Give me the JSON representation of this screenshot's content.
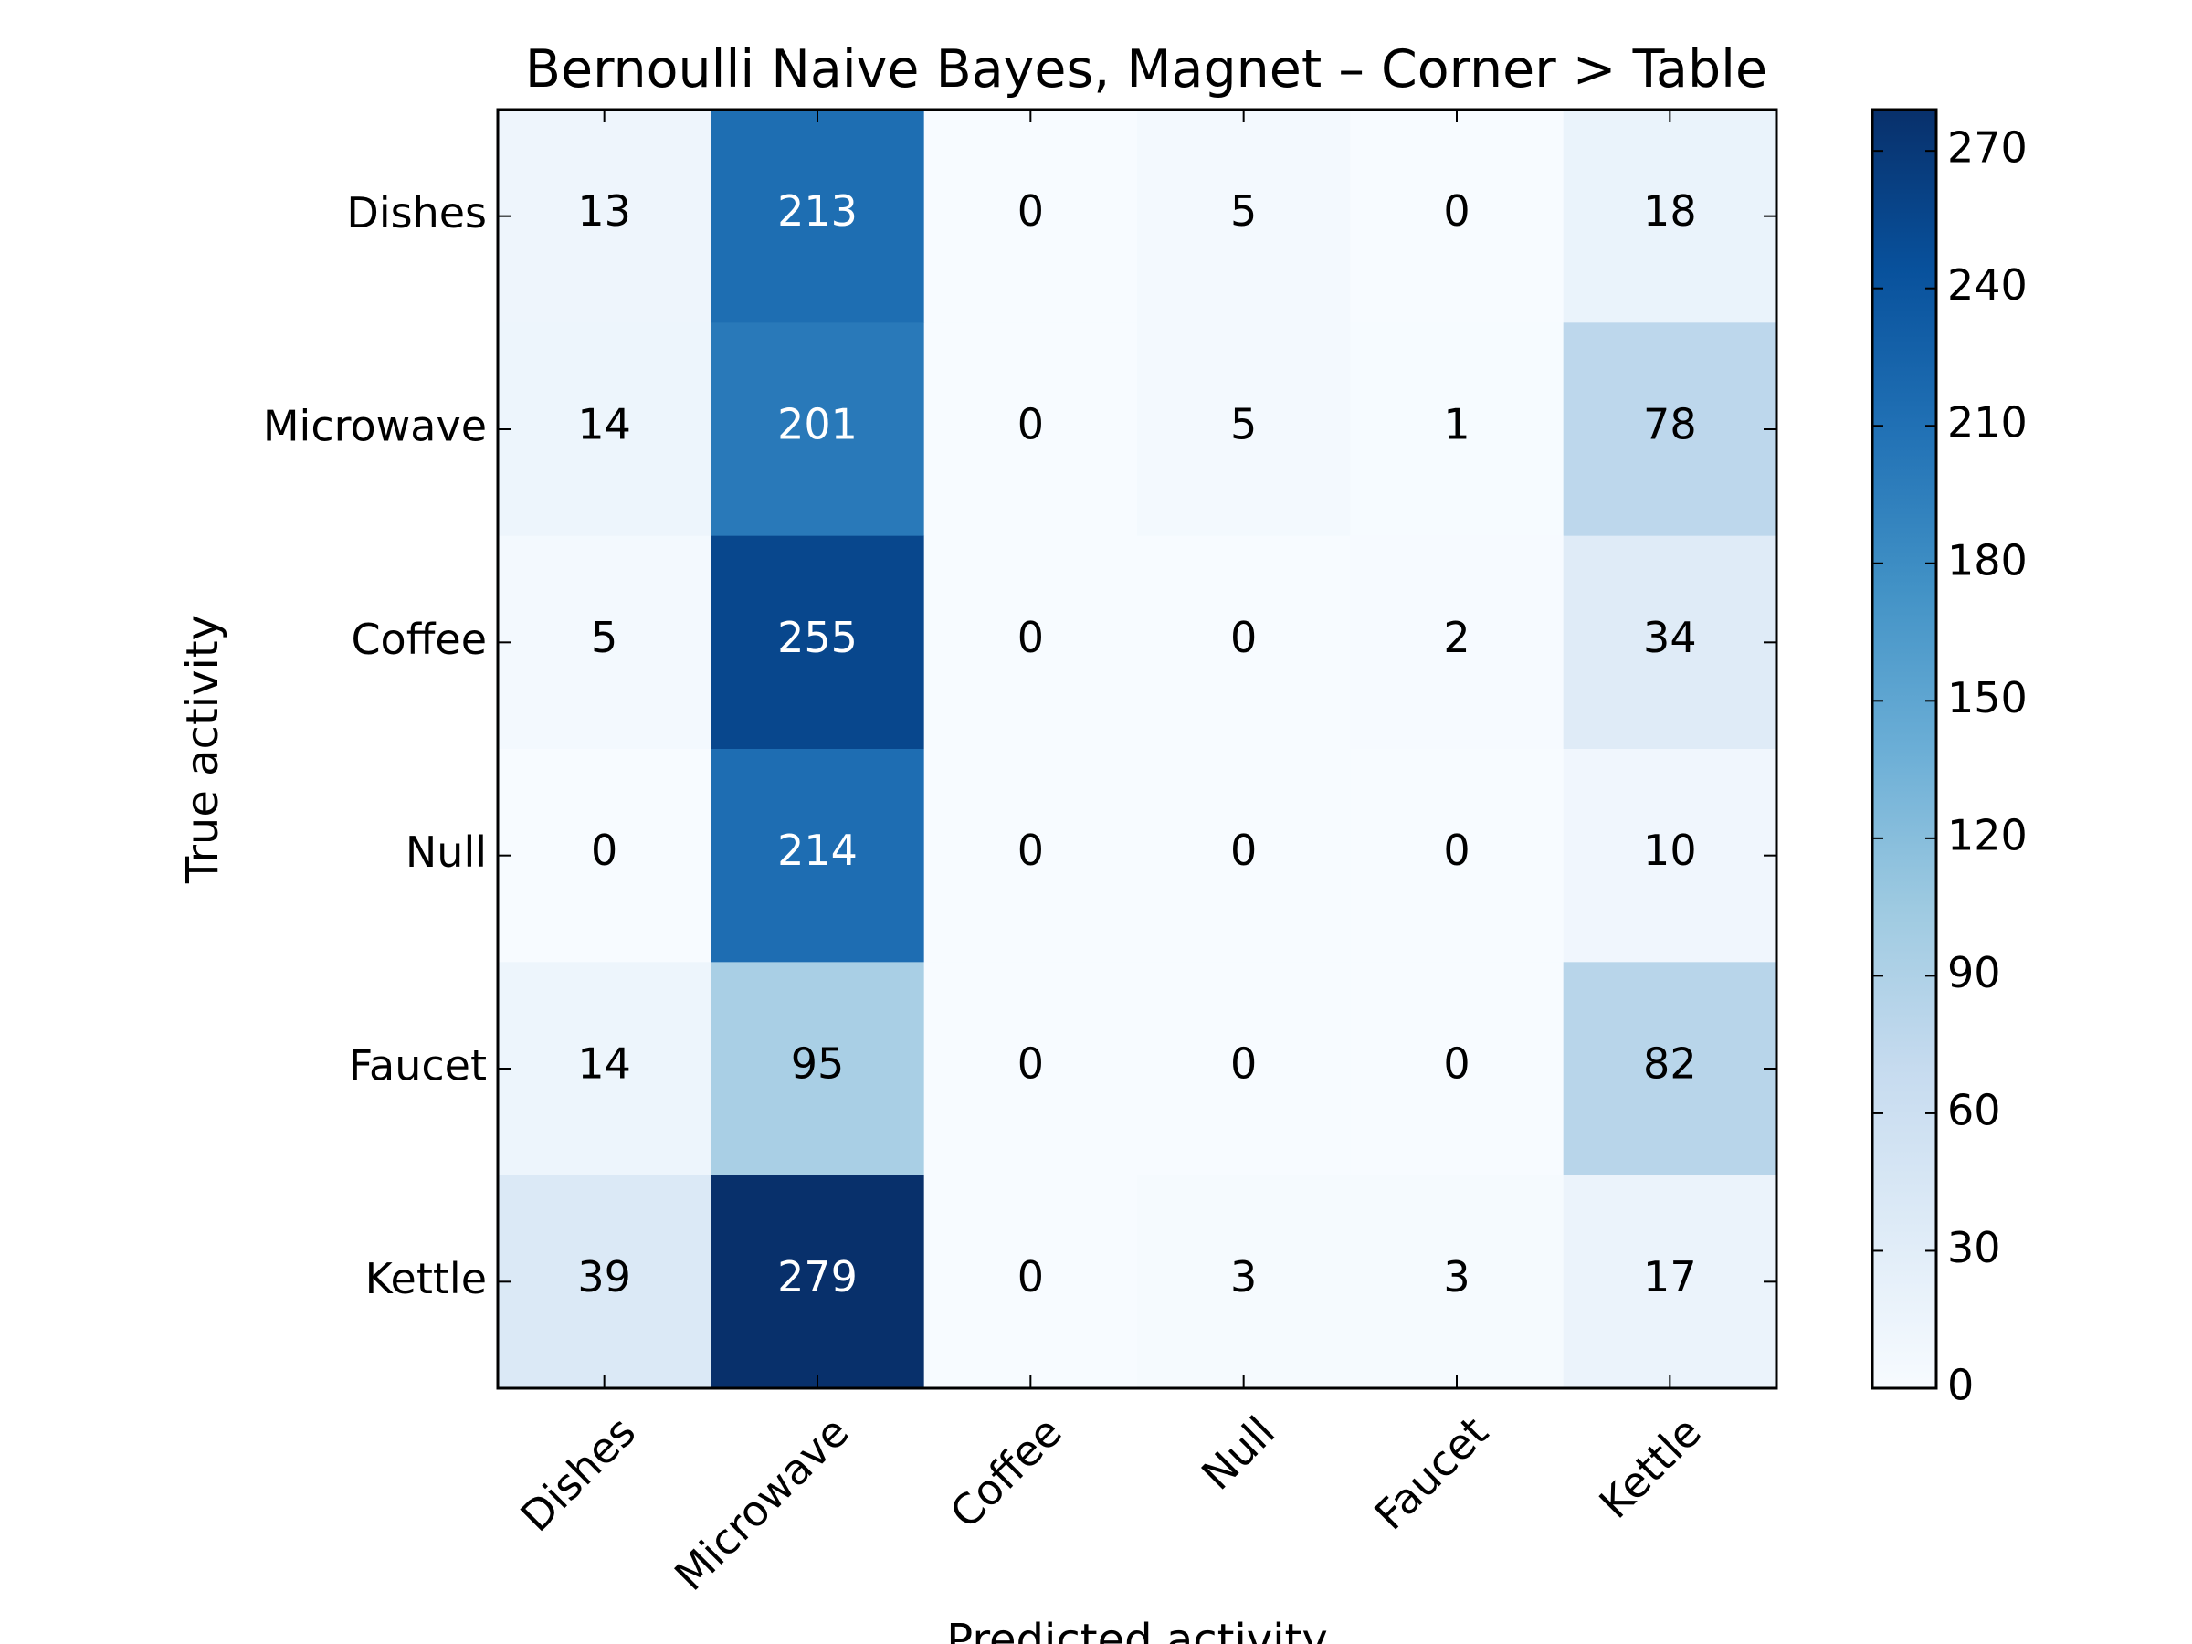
{
  "chart_data": {
    "type": "heatmap",
    "title": "Bernoulli Naive Bayes, Magnet – Corner > Table",
    "xlabel": "Predicted activity",
    "ylabel": "True activity",
    "x_categories": [
      "Dishes",
      "Microwave",
      "Coffee",
      "Null",
      "Faucet",
      "Kettle"
    ],
    "y_categories": [
      "Dishes",
      "Microwave",
      "Coffee",
      "Null",
      "Faucet",
      "Kettle"
    ],
    "values": [
      [
        13,
        213,
        0,
        5,
        0,
        18
      ],
      [
        14,
        201,
        0,
        5,
        1,
        78
      ],
      [
        5,
        255,
        0,
        0,
        2,
        34
      ],
      [
        0,
        214,
        0,
        0,
        0,
        10
      ],
      [
        14,
        95,
        0,
        0,
        0,
        82
      ],
      [
        39,
        279,
        0,
        3,
        3,
        17
      ]
    ],
    "colormap": "Blues",
    "value_range": [
      0,
      279
    ],
    "colorbar_ticks": [
      0,
      30,
      60,
      90,
      120,
      150,
      180,
      210,
      240,
      270
    ],
    "colorbar_tick_labels": [
      "0",
      "30",
      "60",
      "90",
      "120",
      "150",
      "180",
      "210",
      "240",
      "270"
    ],
    "grid": false
  }
}
